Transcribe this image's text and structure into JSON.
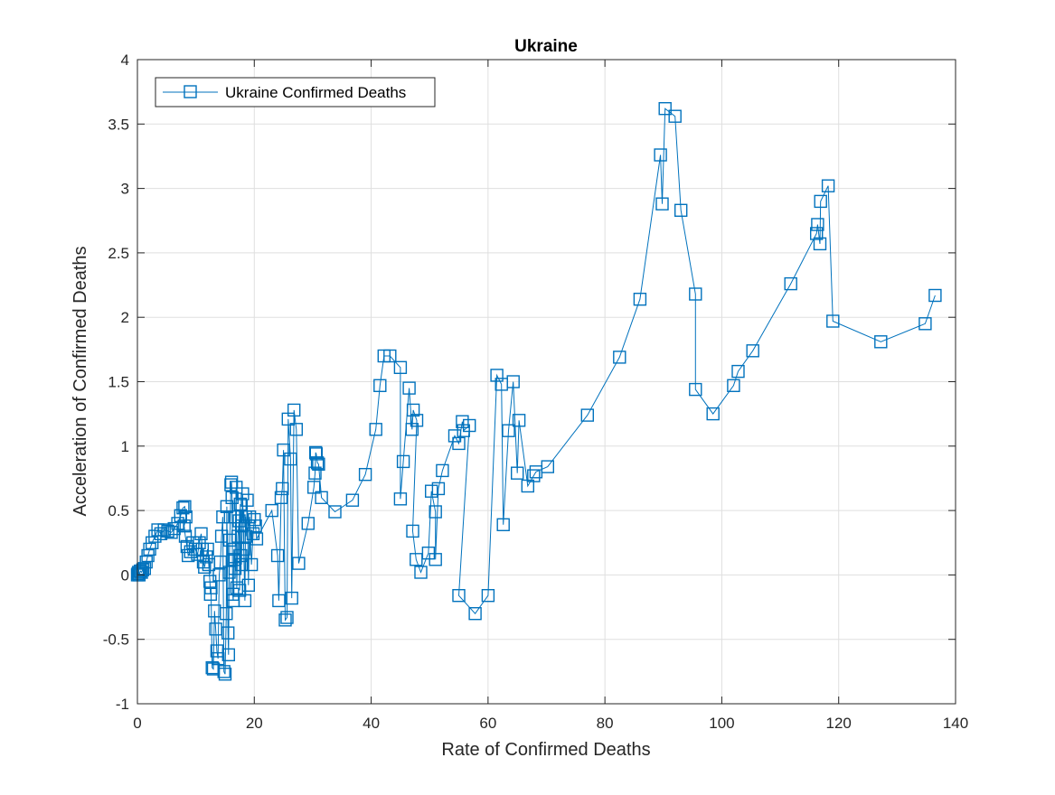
{
  "chart_data": {
    "type": "line",
    "title": "Ukraine",
    "xlabel": "Rate of Confirmed Deaths",
    "ylabel": "Acceleration of Confirmed Deaths",
    "xlim": [
      0,
      140
    ],
    "ylim": [
      -1,
      4
    ],
    "xticks": [
      0,
      20,
      40,
      60,
      80,
      100,
      120,
      140
    ],
    "yticks": [
      -1,
      -0.5,
      0,
      0.5,
      1,
      1.5,
      2,
      2.5,
      3,
      3.5,
      4
    ],
    "xtick_labels": [
      "0",
      "20",
      "40",
      "60",
      "80",
      "100",
      "120",
      "140"
    ],
    "ytick_labels": [
      "-1",
      "-0.5",
      "0",
      "0.5",
      "1",
      "1.5",
      "2",
      "2.5",
      "3",
      "3.5",
      "4"
    ],
    "grid": true,
    "legend_position": "top-left",
    "marker": "square",
    "color": "#0072BD",
    "series": [
      {
        "name": "Ukraine Confirmed Deaths",
        "points": [
          [
            0.0,
            0.0
          ],
          [
            0.1,
            0.01
          ],
          [
            0.2,
            0.02
          ],
          [
            0.3,
            0.0
          ],
          [
            0.5,
            0.03
          ],
          [
            0.7,
            0.02
          ],
          [
            0.9,
            0.04
          ],
          [
            1.2,
            0.05
          ],
          [
            1.5,
            0.1
          ],
          [
            1.8,
            0.15
          ],
          [
            2.1,
            0.2
          ],
          [
            2.5,
            0.25
          ],
          [
            3.0,
            0.3
          ],
          [
            3.5,
            0.35
          ],
          [
            4.0,
            0.32
          ],
          [
            4.6,
            0.35
          ],
          [
            5.2,
            0.34
          ],
          [
            5.8,
            0.33
          ],
          [
            6.3,
            0.36
          ],
          [
            6.9,
            0.4
          ],
          [
            7.4,
            0.46
          ],
          [
            7.8,
            0.52
          ],
          [
            8.1,
            0.53
          ],
          [
            8.3,
            0.45
          ],
          [
            8.0,
            0.38
          ],
          [
            8.2,
            0.3
          ],
          [
            8.5,
            0.22
          ],
          [
            8.7,
            0.15
          ],
          [
            9.1,
            0.18
          ],
          [
            9.5,
            0.25
          ],
          [
            9.9,
            0.2
          ],
          [
            10.3,
            0.16
          ],
          [
            10.6,
            0.25
          ],
          [
            10.9,
            0.32
          ],
          [
            11.1,
            0.2
          ],
          [
            11.3,
            0.1
          ],
          [
            11.5,
            0.06
          ],
          [
            11.8,
            0.14
          ],
          [
            12.0,
            0.2
          ],
          [
            12.2,
            0.08
          ],
          [
            12.4,
            -0.05
          ],
          [
            12.5,
            -0.15
          ],
          [
            12.6,
            -0.1
          ],
          [
            12.8,
            -0.72
          ],
          [
            13.0,
            -0.73
          ],
          [
            13.2,
            -0.28
          ],
          [
            13.4,
            -0.42
          ],
          [
            13.6,
            -0.59
          ],
          [
            13.8,
            -0.65
          ],
          [
            14.0,
            0.0
          ],
          [
            14.2,
            0.1
          ],
          [
            14.4,
            0.3
          ],
          [
            14.6,
            0.45
          ],
          [
            14.8,
            -0.75
          ],
          [
            15.0,
            -0.77
          ],
          [
            15.2,
            -0.3
          ],
          [
            15.3,
            0.53
          ],
          [
            15.5,
            -0.45
          ],
          [
            15.6,
            -0.62
          ],
          [
            15.7,
            0.02
          ],
          [
            15.8,
            0.27
          ],
          [
            15.9,
            0.45
          ],
          [
            16.0,
            0.7
          ],
          [
            16.1,
            0.72
          ],
          [
            16.2,
            0.6
          ],
          [
            16.3,
            -0.15
          ],
          [
            16.4,
            -0.2
          ],
          [
            16.5,
            0.2
          ],
          [
            16.6,
            0.12
          ],
          [
            16.7,
            0.05
          ],
          [
            16.8,
            0.45
          ],
          [
            16.9,
            0.68
          ],
          [
            17.0,
            -0.1
          ],
          [
            17.2,
            0.3
          ],
          [
            17.4,
            0.42
          ],
          [
            17.5,
            -0.12
          ],
          [
            17.6,
            0.55
          ],
          [
            17.7,
            0.15
          ],
          [
            17.8,
            0.08
          ],
          [
            17.9,
            0.38
          ],
          [
            18.0,
            0.63
          ],
          [
            18.2,
            0.2
          ],
          [
            18.4,
            -0.2
          ],
          [
            18.5,
            0.45
          ],
          [
            18.6,
            0.3
          ],
          [
            18.8,
            0.58
          ],
          [
            19.0,
            -0.08
          ],
          [
            19.2,
            0.45
          ],
          [
            19.5,
            0.08
          ],
          [
            19.8,
            0.32
          ],
          [
            20.0,
            0.43
          ],
          [
            20.2,
            0.38
          ],
          [
            20.4,
            0.28
          ],
          [
            23.0,
            0.5
          ],
          [
            24.0,
            0.15
          ],
          [
            24.2,
            -0.2
          ],
          [
            24.6,
            0.6
          ],
          [
            24.8,
            0.67
          ],
          [
            25.0,
            0.97
          ],
          [
            25.3,
            -0.35
          ],
          [
            25.6,
            -0.33
          ],
          [
            25.8,
            1.21
          ],
          [
            26.2,
            0.9
          ],
          [
            26.4,
            -0.18
          ],
          [
            26.8,
            1.28
          ],
          [
            27.2,
            1.13
          ],
          [
            27.6,
            0.09
          ],
          [
            29.2,
            0.4
          ],
          [
            30.2,
            0.68
          ],
          [
            30.4,
            0.79
          ],
          [
            30.5,
            0.95
          ],
          [
            30.6,
            0.94
          ],
          [
            30.8,
            0.87
          ],
          [
            31.0,
            0.86
          ],
          [
            31.5,
            0.6
          ],
          [
            33.8,
            0.49
          ],
          [
            36.8,
            0.58
          ],
          [
            39.0,
            0.78
          ],
          [
            40.8,
            1.13
          ],
          [
            41.5,
            1.47
          ],
          [
            42.2,
            1.7
          ],
          [
            43.2,
            1.7
          ],
          [
            45.0,
            1.61
          ],
          [
            45.0,
            0.59
          ],
          [
            45.5,
            0.88
          ],
          [
            46.5,
            1.45
          ],
          [
            47.0,
            1.13
          ],
          [
            47.2,
            1.28
          ],
          [
            47.8,
            1.2
          ],
          [
            47.1,
            0.34
          ],
          [
            47.7,
            0.12
          ],
          [
            48.5,
            0.02
          ],
          [
            49.8,
            0.17
          ],
          [
            50.3,
            0.65
          ],
          [
            51.0,
            0.49
          ],
          [
            51.0,
            0.12
          ],
          [
            51.5,
            0.67
          ],
          [
            52.2,
            0.81
          ],
          [
            54.3,
            1.08
          ],
          [
            55.0,
            1.02
          ],
          [
            55.6,
            1.19
          ],
          [
            55.8,
            1.12
          ],
          [
            56.8,
            1.16
          ],
          [
            55.0,
            -0.16
          ],
          [
            57.8,
            -0.3
          ],
          [
            60.0,
            -0.16
          ],
          [
            61.5,
            1.55
          ],
          [
            62.3,
            1.48
          ],
          [
            62.6,
            0.39
          ],
          [
            63.5,
            1.12
          ],
          [
            64.3,
            1.5
          ],
          [
            65.0,
            0.79
          ],
          [
            65.3,
            1.2
          ],
          [
            66.8,
            0.69
          ],
          [
            67.8,
            0.77
          ],
          [
            68.2,
            0.8
          ],
          [
            70.2,
            0.84
          ],
          [
            77.0,
            1.24
          ],
          [
            82.5,
            1.69
          ],
          [
            86.0,
            2.14
          ],
          [
            89.5,
            3.26
          ],
          [
            89.8,
            2.88
          ],
          [
            90.3,
            3.62
          ],
          [
            92.0,
            3.56
          ],
          [
            93.0,
            2.83
          ],
          [
            95.5,
            2.18
          ],
          [
            95.5,
            1.44
          ],
          [
            98.5,
            1.25
          ],
          [
            102.0,
            1.47
          ],
          [
            102.8,
            1.58
          ],
          [
            105.3,
            1.74
          ],
          [
            111.8,
            2.26
          ],
          [
            116.2,
            2.65
          ],
          [
            116.4,
            2.72
          ],
          [
            116.8,
            2.57
          ],
          [
            116.9,
            2.9
          ],
          [
            118.2,
            3.02
          ],
          [
            119.0,
            1.97
          ],
          [
            127.2,
            1.81
          ],
          [
            134.8,
            1.95
          ],
          [
            136.5,
            2.17
          ]
        ]
      }
    ]
  }
}
